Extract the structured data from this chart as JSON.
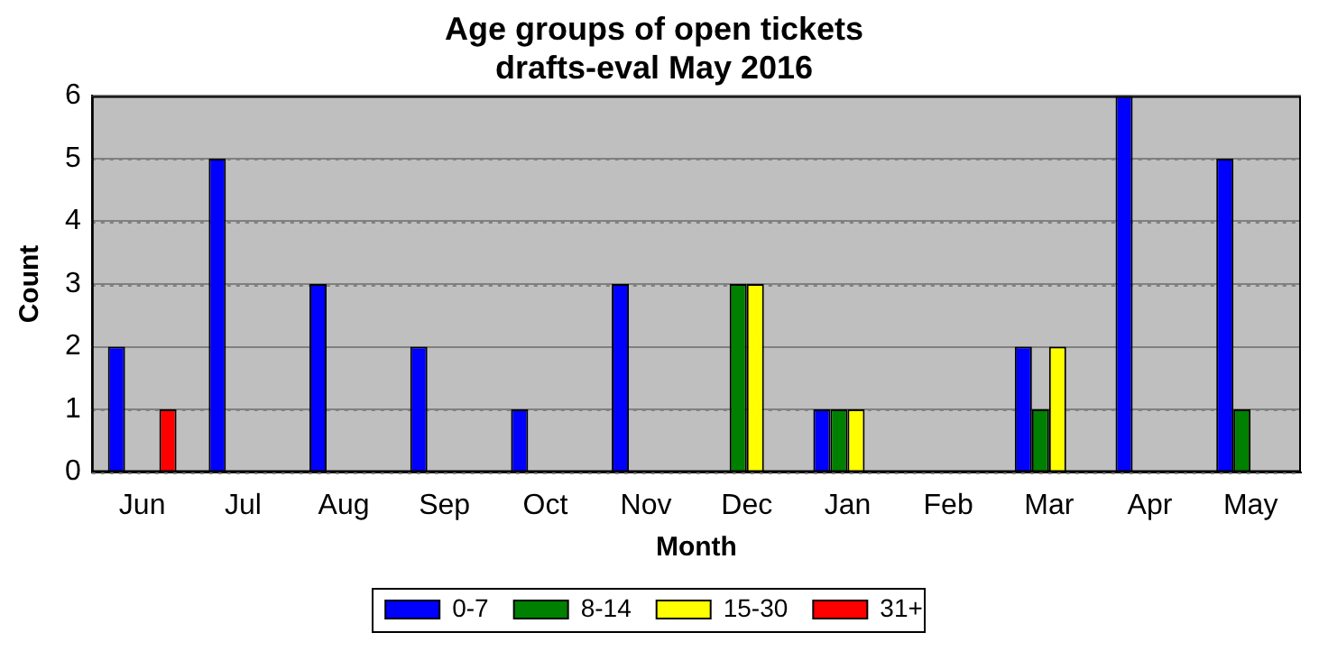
{
  "chart_data": {
    "type": "bar",
    "title": "Age groups of open tickets\ndrafts-eval May 2016",
    "xlabel": "Month",
    "ylabel": "Count",
    "categories": [
      "Jun",
      "Jul",
      "Aug",
      "Sep",
      "Oct",
      "Nov",
      "Dec",
      "Jan",
      "Feb",
      "Mar",
      "Apr",
      "May"
    ],
    "series": [
      {
        "name": "0-7",
        "color": "#0000ff",
        "values": [
          2,
          5,
          3,
          2,
          1,
          3,
          0,
          1,
          0,
          2,
          6,
          5
        ]
      },
      {
        "name": "8-14",
        "color": "#008000",
        "values": [
          0,
          0,
          0,
          0,
          0,
          0,
          3,
          1,
          0,
          1,
          0,
          1
        ]
      },
      {
        "name": "15-30",
        "color": "#ffff00",
        "values": [
          0,
          0,
          0,
          0,
          0,
          0,
          3,
          1,
          0,
          2,
          0,
          0
        ]
      },
      {
        "name": "31+",
        "color": "#ff0000",
        "values": [
          1,
          0,
          0,
          0,
          0,
          0,
          0,
          0,
          0,
          0,
          0,
          0
        ]
      }
    ],
    "ylim": [
      0,
      6
    ],
    "yticks": [
      0,
      1,
      2,
      3,
      4,
      5,
      6
    ],
    "grid": "y",
    "legend": "bottom"
  }
}
